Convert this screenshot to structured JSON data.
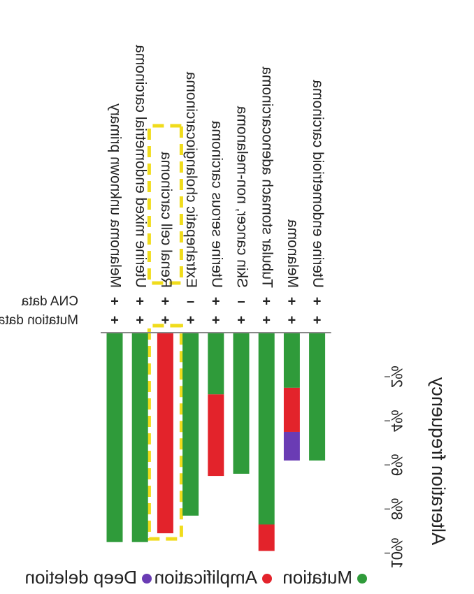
{
  "chart_data": {
    "type": "bar",
    "stacked": true,
    "orientation": "horizontal",
    "image_mirrored": true,
    "axis_title": "Alteration frequency",
    "xlim": [
      0,
      10
    ],
    "tick_labels": [
      "2%",
      "4%",
      "6%",
      "8%",
      "10%"
    ],
    "tick_values": [
      2,
      4,
      6,
      8,
      10
    ],
    "row_headers": [
      "Mutation data",
      "CNA data"
    ],
    "categories": [
      "Melanoma unknown primary",
      "Uterine mixed endometrial carcinoma",
      "Renal cell carcinoma",
      "Extrahepatic cholangiocarcinoma",
      "Uterine serous carcinoma",
      "Skin cancer, non-melanoma",
      "Tubular stomach adenocarcinoma",
      "Melanoma",
      "Uterine endometrioid carcinoma"
    ],
    "mutation_data_marks": [
      "+",
      "+",
      "+",
      "+",
      "+",
      "+",
      "+",
      "+",
      "+"
    ],
    "cna_data_marks": [
      "+",
      "+",
      "+",
      "–",
      "+",
      "–",
      "+",
      "+",
      "+"
    ],
    "series": [
      {
        "name": "Mutation",
        "color": "#2f9b3a",
        "values": [
          9.5,
          9.5,
          0,
          8.3,
          2.8,
          6.4,
          8.7,
          2.5,
          5.8
        ]
      },
      {
        "name": "Amplification",
        "color": "#e3232b",
        "values": [
          0,
          0,
          9.1,
          0,
          3.7,
          0,
          1.2,
          2.0,
          0
        ]
      },
      {
        "name": "Deep deletion",
        "color": "#6a3cb4",
        "values": [
          0,
          0,
          0,
          0,
          0,
          0,
          0,
          1.3,
          0
        ]
      }
    ],
    "highlighted_category": "Renal cell carcinoma",
    "highlight_color": "#f0dc1c",
    "legend_position": "bottom"
  }
}
